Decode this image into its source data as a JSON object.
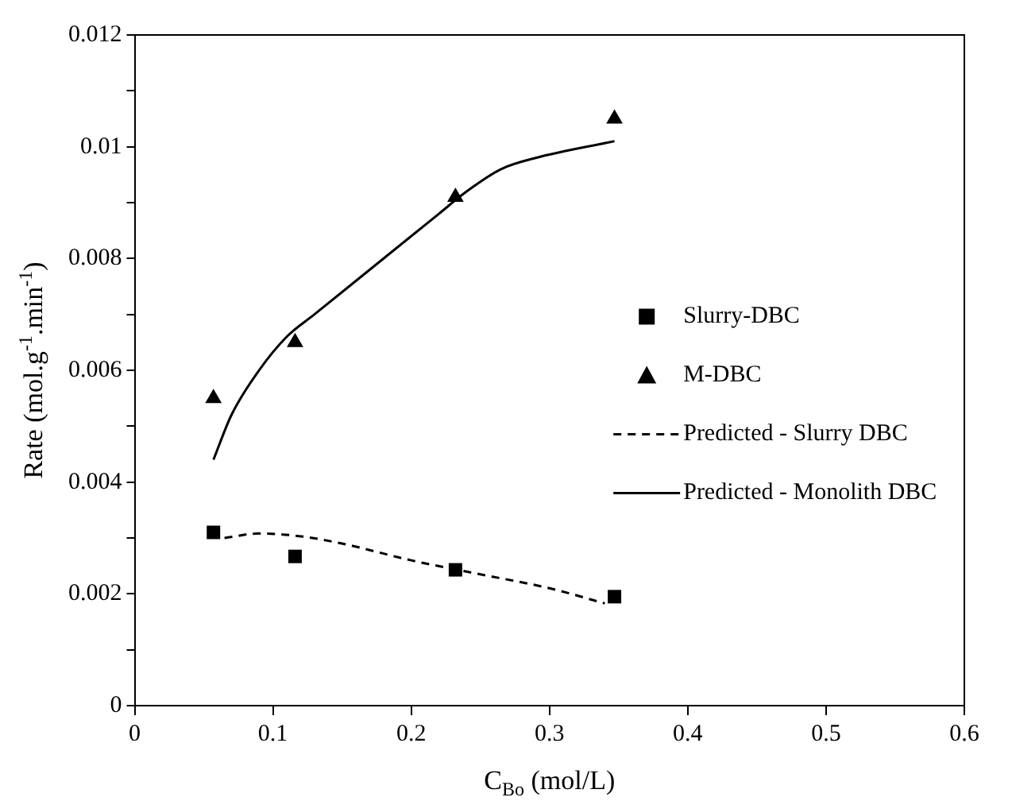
{
  "chart_data": {
    "type": "scatter",
    "xlabel": "C$_{Bo}$ (mol/L)",
    "ylabel": "Rate (mol.g$^{-1}$.min$^{-1}$)",
    "xlim": [
      0,
      0.6
    ],
    "xticks": [
      0,
      0.1,
      0.2,
      0.3,
      0.4,
      0.5,
      0.6
    ],
    "ylim": [
      0,
      0.012
    ],
    "yticks": [
      0,
      {
        "value": 0.001,
        "label": null
      },
      0.002,
      {
        "value": 0.003,
        "label": null
      },
      0.004,
      {
        "value": 0.005,
        "label": null
      },
      0.006,
      {
        "value": 0.007,
        "label": null
      },
      0.008,
      {
        "value": 0.009,
        "label": null
      },
      0.01,
      {
        "value": 0.011,
        "label": null
      },
      0.012
    ],
    "grid": false,
    "legend": "right",
    "series": [
      {
        "name": "Slurry-DBC",
        "type": "scatter",
        "marker": "square",
        "color": "#000000",
        "x": [
          0.057,
          0.116,
          0.232,
          0.347
        ],
        "values": [
          0.0031,
          0.00267,
          0.00243,
          0.00195
        ]
      },
      {
        "name": "M-DBC",
        "type": "scatter",
        "marker": "triangle",
        "color": "#000000",
        "x": [
          0.057,
          0.116,
          0.232,
          0.347
        ],
        "values": [
          0.0055,
          0.0065,
          0.0091,
          0.0105
        ]
      },
      {
        "name": "Predicted - Slurry DBC",
        "type": "line",
        "marker": "none",
        "line_style": "dashed",
        "color": "#000000",
        "x": [
          0.065,
          0.09,
          0.12,
          0.15,
          0.2,
          0.25,
          0.3,
          0.34
        ],
        "values": [
          0.003,
          0.00308,
          0.00303,
          0.0029,
          0.0026,
          0.00235,
          0.0021,
          0.00183
        ]
      },
      {
        "name": "Predicted - Monolith DBC",
        "type": "line",
        "marker": "none",
        "line_style": "solid",
        "color": "#000000",
        "x": [
          0.057,
          0.07,
          0.09,
          0.11,
          0.13,
          0.16,
          0.19,
          0.22,
          0.24,
          0.265,
          0.29,
          0.347
        ],
        "values": [
          0.0044,
          0.0052,
          0.006,
          0.0066,
          0.007,
          0.0076,
          0.0082,
          0.0088,
          0.0092,
          0.0096,
          0.0098,
          0.0101
        ]
      }
    ]
  }
}
